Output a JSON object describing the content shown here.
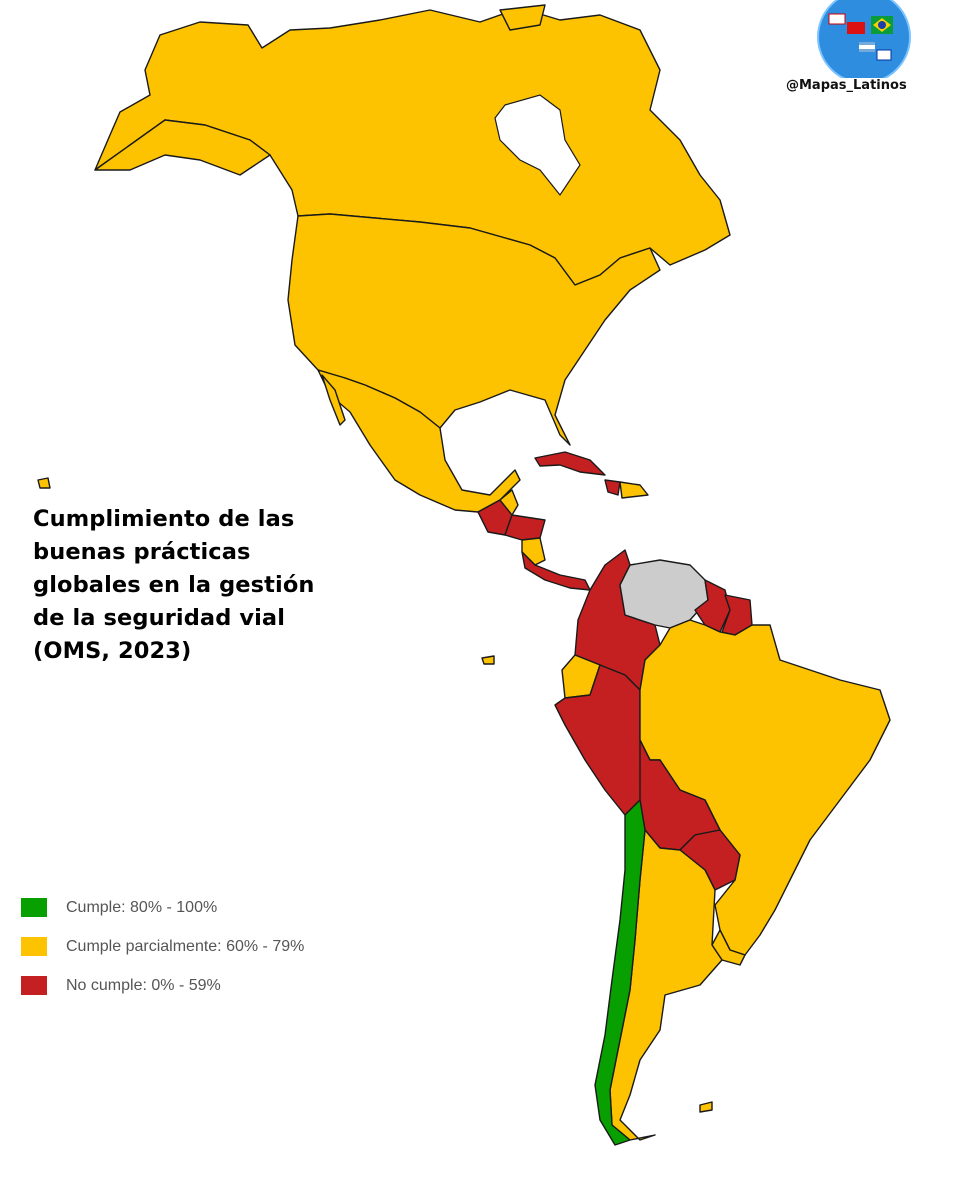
{
  "title": "Cumplimiento de las\nbuenas prácticas\nglobales en la gestión\nde la seguridad vial\n(OMS, 2023)",
  "watermark": {
    "handle": "@Mapas_Latinos",
    "logo_icon": "globe-with-latin-flags-icon"
  },
  "categories": [
    {
      "key": "cumple",
      "label": "Cumple: 80% - 100%",
      "color": "#08a000"
    },
    {
      "key": "parcial",
      "label": "Cumple parcialmente: 60% - 79%",
      "color": "#fdc300"
    },
    {
      "key": "no",
      "label": "No cumple: 0% - 59%",
      "color": "#c42021"
    }
  ],
  "no_data_color": "#cccccc",
  "countries": [
    {
      "name": "Canadá",
      "category": "parcial"
    },
    {
      "name": "Estados Unidos",
      "category": "parcial"
    },
    {
      "name": "México",
      "category": "parcial"
    },
    {
      "name": "Guatemala",
      "category": "no"
    },
    {
      "name": "Belice",
      "category": "parcial"
    },
    {
      "name": "Honduras",
      "category": "no"
    },
    {
      "name": "El Salvador",
      "category": "no"
    },
    {
      "name": "Nicaragua",
      "category": "parcial"
    },
    {
      "name": "Costa Rica",
      "category": "no"
    },
    {
      "name": "Panamá",
      "category": "no"
    },
    {
      "name": "Cuba",
      "category": "no"
    },
    {
      "name": "Haití",
      "category": "no"
    },
    {
      "name": "República Dominicana",
      "category": "parcial"
    },
    {
      "name": "Colombia",
      "category": "no"
    },
    {
      "name": "Venezuela",
      "category": "sin-datos"
    },
    {
      "name": "Guyana",
      "category": "no"
    },
    {
      "name": "Surinam",
      "category": "no"
    },
    {
      "name": "Ecuador",
      "category": "parcial"
    },
    {
      "name": "Perú",
      "category": "no"
    },
    {
      "name": "Brasil",
      "category": "parcial"
    },
    {
      "name": "Bolivia",
      "category": "no"
    },
    {
      "name": "Paraguay",
      "category": "no"
    },
    {
      "name": "Chile",
      "category": "cumple"
    },
    {
      "name": "Argentina",
      "category": "parcial"
    },
    {
      "name": "Uruguay",
      "category": "parcial"
    }
  ]
}
